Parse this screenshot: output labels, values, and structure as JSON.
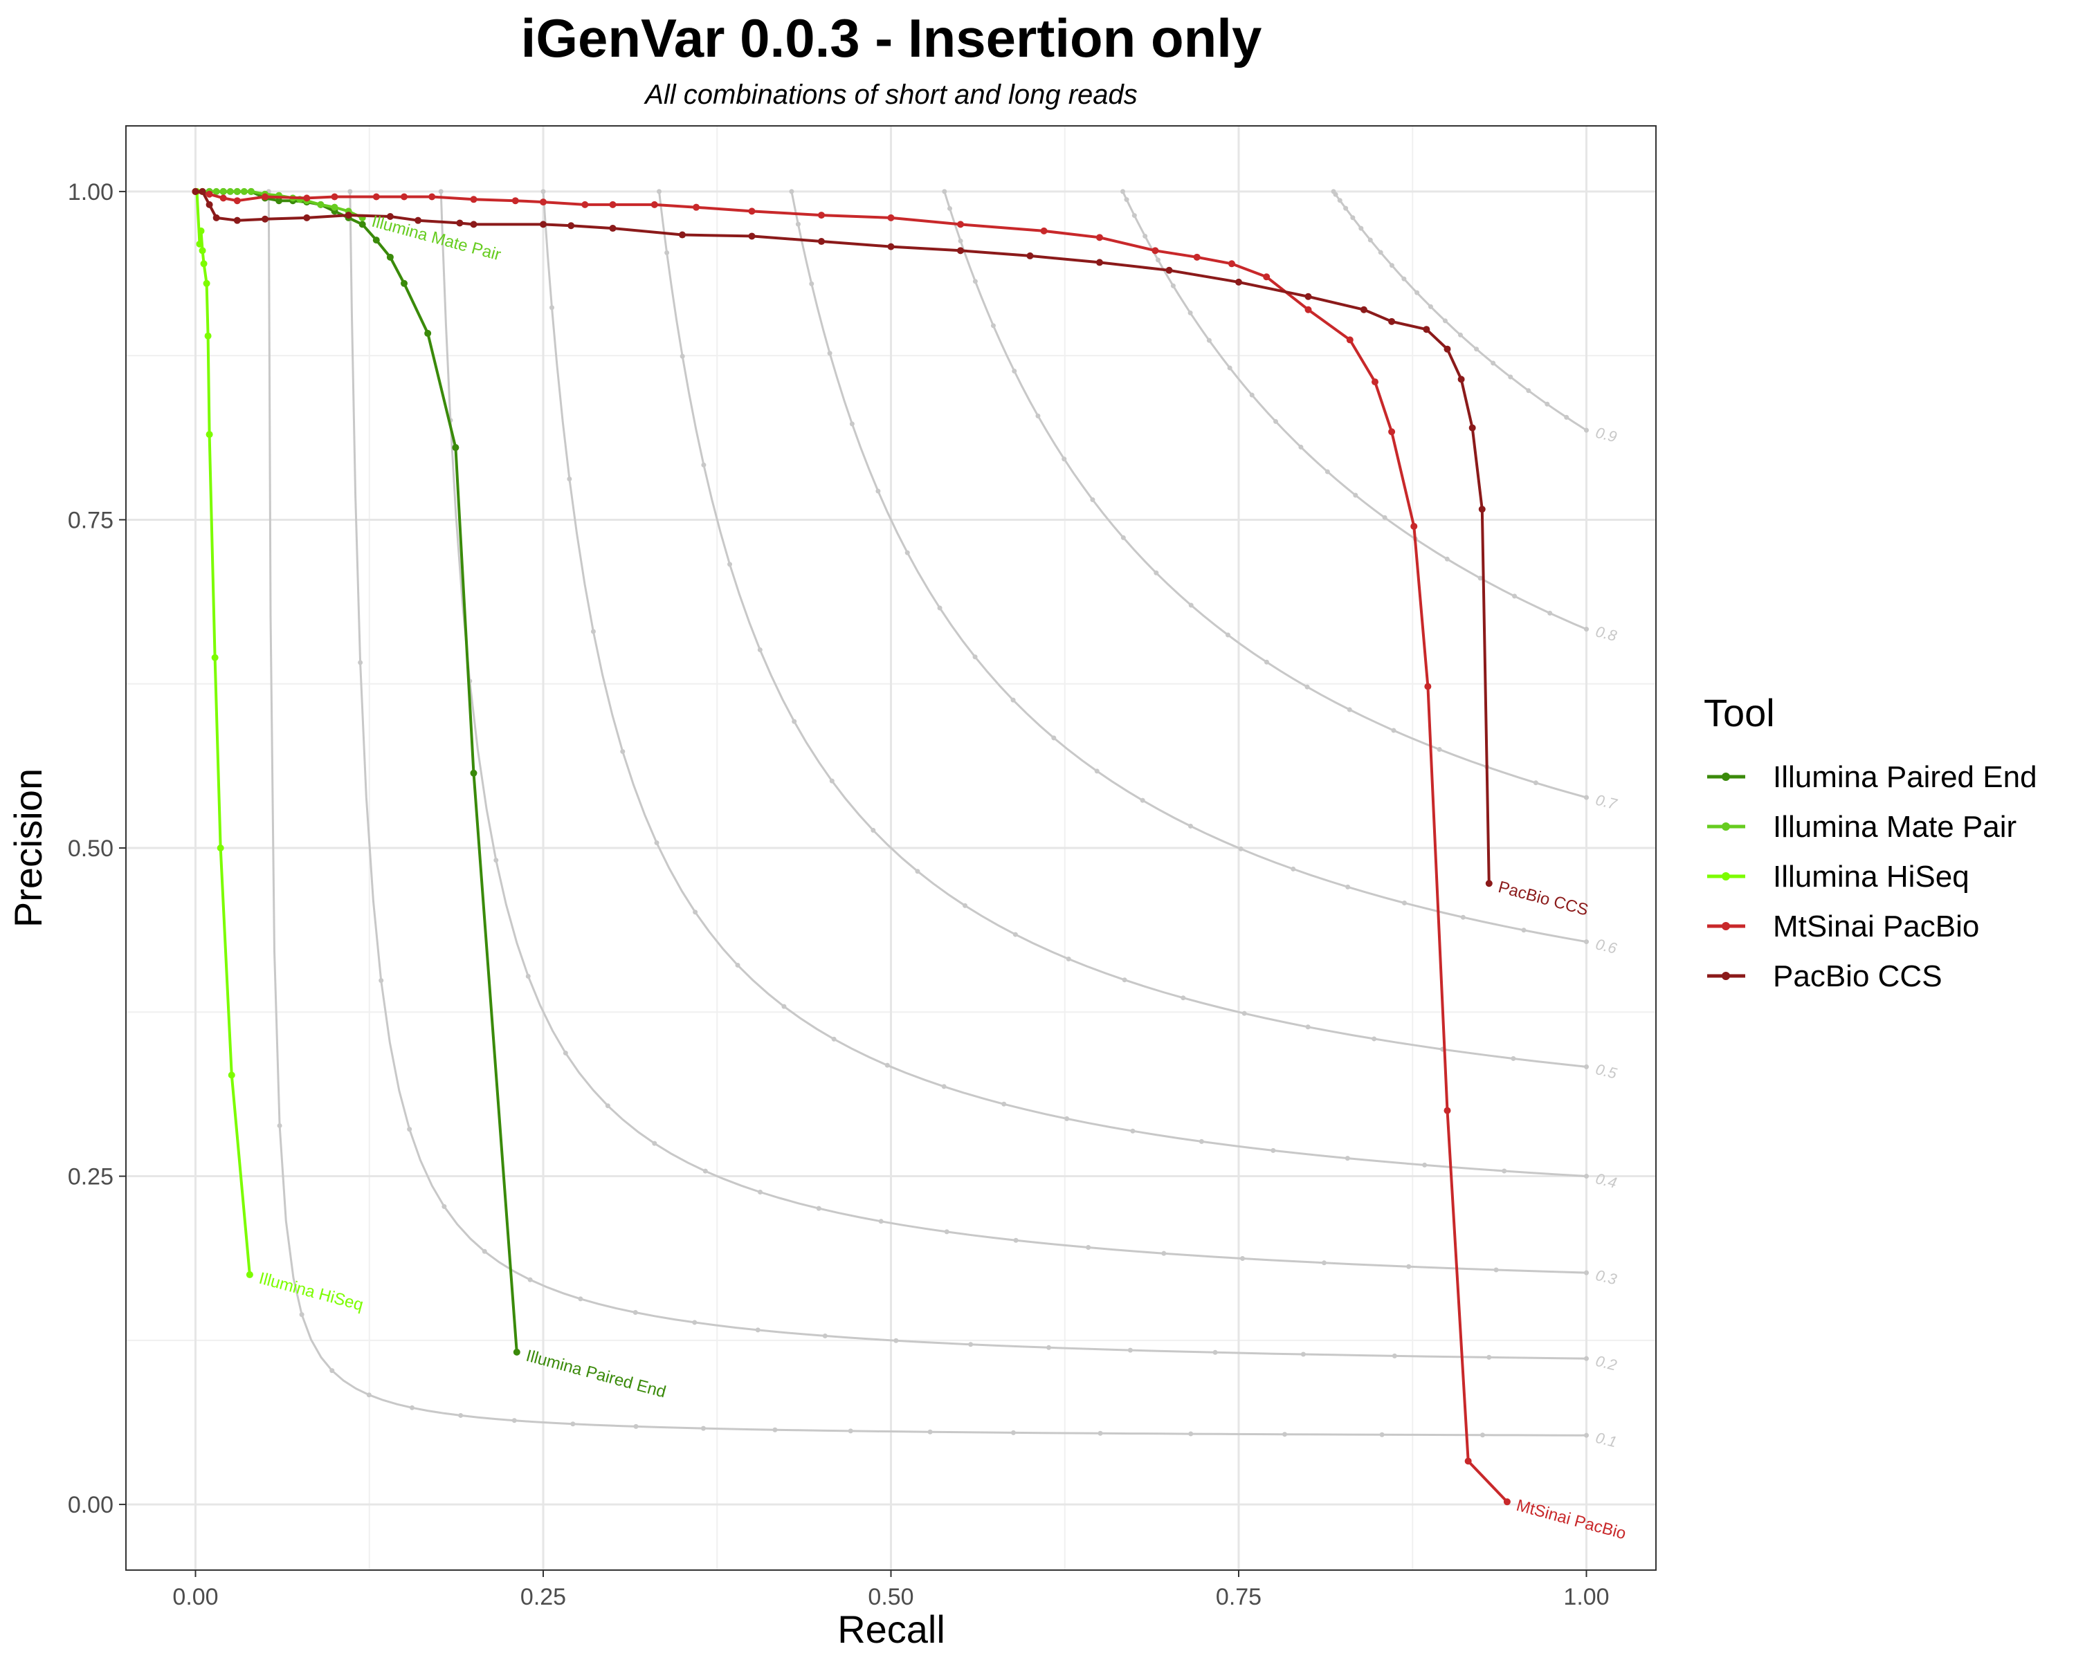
{
  "chart_data": {
    "type": "line",
    "title": "iGenVar 0.0.3 - Insertion only",
    "subtitle": "All combinations of short and long reads",
    "xlabel": "Recall",
    "ylabel": "Precision",
    "xlim": [
      -0.05,
      1.05
    ],
    "ylim": [
      -0.05,
      1.05
    ],
    "x_ticks": [
      "0.00",
      "0.25",
      "0.50",
      "0.75",
      "1.00"
    ],
    "y_ticks": [
      "0.00",
      "0.25",
      "0.50",
      "0.75",
      "1.00"
    ],
    "grid": true,
    "legend": {
      "title": "Tool",
      "placement": "right"
    },
    "f_score_isolines": {
      "color": "#c8c8c8",
      "values": [
        0.1,
        0.2,
        0.3,
        0.4,
        0.5,
        0.6,
        0.7,
        0.8,
        0.9
      ],
      "labels": [
        "0.1",
        "0.2",
        "0.3",
        "0.4",
        "0.5",
        "0.6",
        "0.7",
        "0.8",
        "0.9"
      ]
    },
    "series": [
      {
        "name": "Illumina Paired End",
        "end_label": "Illumina Paired End",
        "color": "#3a8a0a",
        "x": [
          0.0,
          0.01,
          0.02,
          0.03,
          0.04,
          0.05,
          0.06,
          0.07,
          0.08,
          0.09,
          0.1,
          0.11,
          0.12,
          0.13,
          0.14,
          0.15,
          0.167,
          0.187,
          0.2,
          0.231
        ],
        "y": [
          1.0,
          1.0,
          1.0,
          1.0,
          1.0,
          0.995,
          0.993,
          0.993,
          0.992,
          0.99,
          0.985,
          0.98,
          0.975,
          0.963,
          0.95,
          0.93,
          0.892,
          0.805,
          0.557,
          0.116
        ]
      },
      {
        "name": "Illumina Mate Pair",
        "end_label": "Illumina Mate Pair",
        "color": "#66cc1f",
        "x": [
          0.0,
          0.005,
          0.01,
          0.015,
          0.02,
          0.025,
          0.03,
          0.035,
          0.04,
          0.05,
          0.06,
          0.07,
          0.075,
          0.08,
          0.09,
          0.1,
          0.11,
          0.12
        ],
        "y": [
          1.0,
          1.0,
          1.0,
          1.0,
          1.0,
          1.0,
          1.0,
          1.0,
          1.0,
          0.998,
          0.997,
          0.995,
          0.994,
          0.993,
          0.99,
          0.988,
          0.985,
          0.98
        ]
      },
      {
        "name": "Illumina HiSeq",
        "end_label": "Illumina HiSeq",
        "color": "#7cfc00",
        "x": [
          0.001,
          0.003,
          0.004,
          0.005,
          0.006,
          0.008,
          0.009,
          0.01,
          0.014,
          0.018,
          0.026,
          0.039
        ],
        "y": [
          1.0,
          0.96,
          0.97,
          0.955,
          0.945,
          0.93,
          0.89,
          0.815,
          0.645,
          0.5,
          0.327,
          0.175
        ]
      },
      {
        "name": "MtSinai PacBio",
        "end_label": "MtSinai PacBio",
        "color": "#c8282a",
        "x": [
          0.0,
          0.01,
          0.02,
          0.03,
          0.05,
          0.08,
          0.1,
          0.13,
          0.15,
          0.17,
          0.2,
          0.23,
          0.25,
          0.28,
          0.3,
          0.33,
          0.36,
          0.4,
          0.45,
          0.5,
          0.55,
          0.61,
          0.65,
          0.69,
          0.72,
          0.745,
          0.77,
          0.8,
          0.83,
          0.848,
          0.86,
          0.876,
          0.886,
          0.9,
          0.915,
          0.943
        ],
        "y": [
          1.0,
          0.998,
          0.995,
          0.993,
          0.996,
          0.995,
          0.996,
          0.996,
          0.996,
          0.996,
          0.994,
          0.993,
          0.992,
          0.99,
          0.99,
          0.99,
          0.988,
          0.985,
          0.982,
          0.98,
          0.975,
          0.97,
          0.965,
          0.955,
          0.95,
          0.945,
          0.935,
          0.91,
          0.887,
          0.855,
          0.817,
          0.745,
          0.623,
          0.3,
          0.033,
          0.002
        ]
      },
      {
        "name": "PacBio CCS",
        "end_label": "PacBio CCS",
        "color": "#8b1a1a",
        "x": [
          0.0,
          0.005,
          0.01,
          0.015,
          0.03,
          0.05,
          0.08,
          0.11,
          0.14,
          0.16,
          0.19,
          0.2,
          0.25,
          0.27,
          0.3,
          0.35,
          0.4,
          0.45,
          0.5,
          0.55,
          0.6,
          0.65,
          0.7,
          0.75,
          0.8,
          0.84,
          0.86,
          0.885,
          0.9,
          0.91,
          0.918,
          0.925,
          0.93
        ],
        "y": [
          1.0,
          1.0,
          0.99,
          0.98,
          0.978,
          0.979,
          0.98,
          0.982,
          0.981,
          0.978,
          0.976,
          0.975,
          0.975,
          0.974,
          0.972,
          0.967,
          0.966,
          0.962,
          0.958,
          0.955,
          0.951,
          0.946,
          0.94,
          0.931,
          0.92,
          0.91,
          0.901,
          0.895,
          0.88,
          0.857,
          0.82,
          0.758,
          0.473
        ]
      }
    ]
  }
}
